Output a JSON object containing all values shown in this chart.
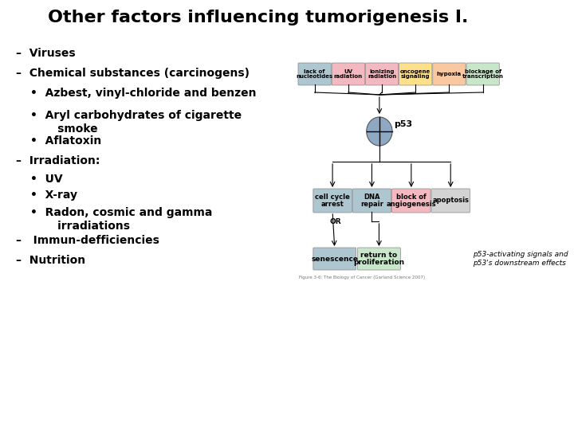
{
  "title": "Other factors influencing tumorigenesis I.",
  "title_fontsize": 16,
  "title_fontweight": "bold",
  "background_color": "#ffffff",
  "text_color": "#000000",
  "bullet_items": [
    {
      "level": 0,
      "text": "–  Viruses"
    },
    {
      "level": 0,
      "text": "–  Chemical substances (carcinogens)"
    },
    {
      "level": 1,
      "text": "•  Azbest, vinyl-chloride and benzen"
    },
    {
      "level": 1,
      "text": "•  Aryl carbohydrates of cigarette\n       smoke"
    },
    {
      "level": 1,
      "text": "•  Aflatoxin"
    },
    {
      "level": 0,
      "text": "–  Irradiation:"
    },
    {
      "level": 1,
      "text": "•  UV"
    },
    {
      "level": 1,
      "text": "•  X-ray"
    },
    {
      "level": 1,
      "text": "•  Radon, cosmic and gamma\n       irradiations"
    },
    {
      "level": 0,
      "text": "–   Immun-defficiencies"
    },
    {
      "level": 0,
      "text": "–  Nutrition"
    }
  ],
  "text_fontsize": 10,
  "text_fontweight": "bold",
  "diagram": {
    "top_boxes": [
      {
        "label": "lack of\nnucleotides",
        "color": "#aec6cf"
      },
      {
        "label": "UV\nradiation",
        "color": "#f4b8c1"
      },
      {
        "label": "ionizing\nradiation",
        "color": "#f4b8c1"
      },
      {
        "label": "oncogene\nsignaling",
        "color": "#ffe08a"
      },
      {
        "label": "hypoxia",
        "color": "#f9c8a0"
      },
      {
        "label": "blockage of\ntranscription",
        "color": "#c8e6c9"
      }
    ],
    "p53_label": "p53",
    "p53_color": "#8da9c4",
    "bottom_boxes": [
      {
        "label": "cell cycle\narrest",
        "color": "#aec6cf"
      },
      {
        "label": "DNA\nrepair",
        "color": "#aec6cf"
      },
      {
        "label": "block of\nangiogenesis",
        "color": "#f4b8c1"
      },
      {
        "label": "apoptosis",
        "color": "#d3d3d3"
      }
    ],
    "lowest_boxes": [
      {
        "label": "senescence",
        "color": "#aec6cf"
      },
      {
        "label": "return to\nproliferation",
        "color": "#c8e6c9"
      }
    ],
    "or_label": "OR",
    "caption": "p53-activating signals and\np53's downstream effects",
    "figure_note": "Figure 3-6: The Biology of Cancer (Garland Science 2007)"
  }
}
